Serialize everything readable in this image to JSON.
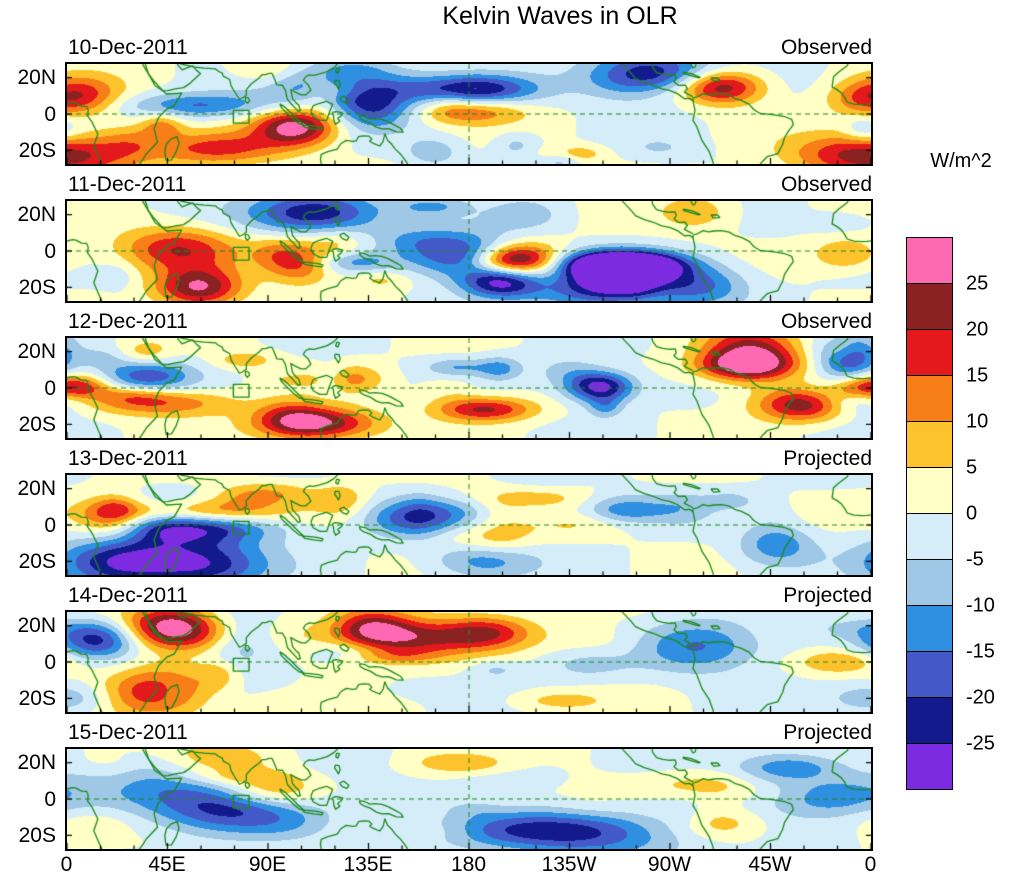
{
  "title": "Kelvin Waves in OLR",
  "chart_data": {
    "type": "heatmap",
    "subtype": "filled-contour longitude-band anomaly maps (6 stacked daily panels)",
    "title": "Kelvin Waves in OLR",
    "panels": [
      {
        "date": "10-Dec-2011",
        "label": "Observed"
      },
      {
        "date": "11-Dec-2011",
        "label": "Observed"
      },
      {
        "date": "12-Dec-2011",
        "label": "Observed"
      },
      {
        "date": "13-Dec-2011",
        "label": "Projected"
      },
      {
        "date": "14-Dec-2011",
        "label": "Projected"
      },
      {
        "date": "15-Dec-2011",
        "label": "Projected"
      }
    ],
    "x_axis": {
      "tick_labels": [
        "0",
        "45E",
        "90E",
        "135E",
        "180",
        "135W",
        "90W",
        "45W",
        "0"
      ],
      "range_degrees_longitude": [
        0,
        360
      ]
    },
    "y_axis": {
      "tick_labels": [
        "20N",
        "0",
        "20S"
      ],
      "range_degrees_latitude": [
        27.5,
        -27.5
      ]
    },
    "colorbar": {
      "units_label": "W/m^2",
      "tick_labels": [
        "25",
        "20",
        "15",
        "10",
        "5",
        "0",
        "-5",
        "-10",
        "-15",
        "-20",
        "-25"
      ],
      "band_colors_top_to_bottom": [
        "#FF69B4",
        "#8B2222",
        "#E3191C",
        "#F87E17",
        "#FCC32C",
        "#FFFFC6",
        "#D5EDF8",
        "#9EC8E6",
        "#2F8FE0",
        "#4459C8",
        "#131B8C",
        "#7C2BE0"
      ],
      "contour_interval": 5
    },
    "map_overlay": {
      "coastline_color": "#1B8A1B",
      "equator_line": "dashed",
      "dateline_180_line": "dashed",
      "marker_square_near": "78E, 3S"
    }
  }
}
